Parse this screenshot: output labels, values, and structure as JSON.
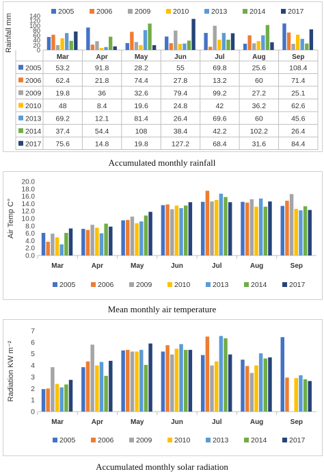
{
  "years": [
    "2005",
    "2006",
    "2009",
    "2010",
    "2013",
    "2014",
    "2017"
  ],
  "months": [
    "Mar",
    "Apr",
    "May",
    "Jun",
    "Jul",
    "Aug",
    "Sep"
  ],
  "colors": [
    "#4472C4",
    "#ED7D31",
    "#A5A5A5",
    "#FFC000",
    "#5B9BD5",
    "#70AD47",
    "#264478"
  ],
  "captions": {
    "rainfall": "Accumulated monthly rainfall",
    "temperature": "Mean monthly air temperature",
    "radiation": "Accumulated monthly solar radiation"
  },
  "chart_data": [
    {
      "type": "bar",
      "ylabel": "Rainfall mm",
      "ylim": [
        0,
        140
      ],
      "yticks": [
        "0",
        "20",
        "40",
        "60",
        "80",
        "100",
        "120",
        "140"
      ],
      "legend_position": "top",
      "data_table": true,
      "grid": false,
      "series": [
        {
          "name": "2005",
          "values": [
            "53.2",
            "91.8",
            "28.2",
            "55",
            "69.8",
            "25.6",
            "108.4"
          ]
        },
        {
          "name": "2006",
          "values": [
            "62.4",
            "21.8",
            "74.4",
            "27.8",
            "13.2",
            "60",
            "71.4"
          ]
        },
        {
          "name": "2009",
          "values": [
            "19.8",
            "36",
            "32.6",
            "79.4",
            "99.2",
            "27.2",
            "25.1"
          ]
        },
        {
          "name": "2010",
          "values": [
            "48",
            "8.4",
            "19.6",
            "24.8",
            "42",
            "36.2",
            "62.6"
          ]
        },
        {
          "name": "2013",
          "values": [
            "69.2",
            "12.1",
            "81.4",
            "26.4",
            "69.6",
            "60",
            "45.6"
          ]
        },
        {
          "name": "2014",
          "values": [
            "37.4",
            "54.4",
            "108",
            "38.4",
            "42.2",
            "102.2",
            "26.4"
          ]
        },
        {
          "name": "2017",
          "values": [
            "75.6",
            "14.8",
            "19.8",
            "127.2",
            "68.4",
            "31.6",
            "84.4"
          ]
        }
      ]
    },
    {
      "type": "bar",
      "ylabel": "Air Temp C°",
      "ylim": [
        0,
        20
      ],
      "yticks": [
        "0.0",
        "2.0",
        "4.0",
        "6.0",
        "8.0",
        "10.0",
        "12.0",
        "14.0",
        "16.0",
        "18.0",
        "20.0"
      ],
      "legend_position": "bottom",
      "grid": false,
      "series": [
        {
          "name": "2005",
          "values": [
            6.1,
            7.2,
            9.5,
            13.6,
            14.5,
            14.5,
            13.4
          ]
        },
        {
          "name": "2006",
          "values": [
            3.7,
            6.9,
            9.6,
            13.8,
            17.5,
            14.3,
            14.8
          ]
        },
        {
          "name": "2009",
          "values": [
            5.9,
            8.3,
            10.5,
            12.5,
            14.6,
            15.2,
            16.6
          ]
        },
        {
          "name": "2010",
          "values": [
            4.9,
            7.5,
            8.7,
            13.5,
            15.0,
            13.2,
            12.6
          ]
        },
        {
          "name": "2013",
          "values": [
            3.0,
            6.0,
            9.2,
            12.8,
            16.7,
            15.4,
            12.2
          ]
        },
        {
          "name": "2014",
          "values": [
            6.1,
            8.6,
            10.8,
            13.5,
            15.8,
            13.2,
            13.3
          ]
        },
        {
          "name": "2017",
          "values": [
            7.3,
            7.8,
            11.8,
            14.4,
            14.4,
            14.6,
            12.3
          ]
        }
      ]
    },
    {
      "type": "bar",
      "ylabel": "Radiation KW m⁻²",
      "ylim": [
        0,
        7
      ],
      "yticks": [
        "0",
        "1",
        "2",
        "3",
        "4",
        "5",
        "6",
        "7"
      ],
      "legend_position": "bottom",
      "grid": false,
      "series": [
        {
          "name": "2005",
          "values": [
            1.95,
            3.85,
            5.3,
            5.2,
            4.9,
            4.5,
            6.45
          ]
        },
        {
          "name": "2006",
          "values": [
            2.0,
            4.35,
            5.35,
            5.75,
            6.5,
            3.95,
            2.95
          ]
        },
        {
          "name": "2009",
          "values": [
            3.85,
            5.8,
            5.2,
            4.95,
            4.0,
            3.35,
            null
          ]
        },
        {
          "name": "2010",
          "values": [
            2.4,
            4.0,
            5.2,
            5.45,
            4.35,
            4.0,
            2.9
          ]
        },
        {
          "name": "2013",
          "values": [
            2.1,
            4.3,
            5.35,
            5.85,
            6.55,
            5.05,
            3.15
          ]
        },
        {
          "name": "2014",
          "values": [
            2.35,
            3.1,
            4.05,
            5.35,
            6.35,
            4.6,
            2.8
          ]
        },
        {
          "name": "2017",
          "values": [
            2.75,
            4.4,
            5.9,
            5.35,
            4.95,
            4.7,
            2.65
          ]
        }
      ]
    }
  ]
}
